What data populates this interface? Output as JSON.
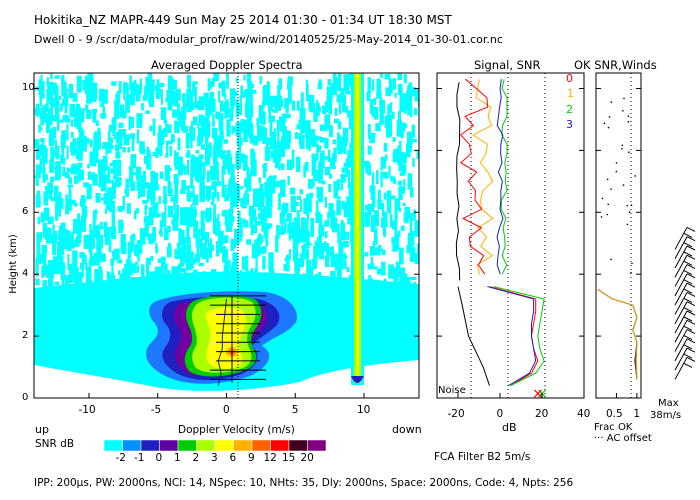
{
  "header": {
    "line1": "Hokitika_NZ  MAPR-449  Sun May 25 2014 01:30 - 01:34 UT 18:30 MST",
    "line2": "Dwell  0 - 9   /scr/data/modular_prof/raw/wind/20140525/25-May-2014_01-30-01.cor.nc"
  },
  "panel_titles": {
    "spectra": "Averaged Doppler Spectra",
    "signal": "Signal, SNR",
    "winds": "OK SNR,Winds"
  },
  "axes": {
    "ylabel": "Height (km)",
    "y_ticks": [
      "0",
      "2",
      "4",
      "6",
      "8",
      "10"
    ],
    "spectra_xlabel": "Doppler Velocity (m/s)",
    "spectra_x_ticks": [
      "-10",
      "-5",
      "0",
      "5",
      "10"
    ],
    "up_label": "up",
    "down_label": "down",
    "signal_xlabel": "dB",
    "signal_x_ticks": [
      "-20",
      "0",
      "20",
      "40"
    ],
    "noise_label": "Noise",
    "frac_x_ticks": [
      "0.5",
      "1"
    ],
    "frac_label": "Frac OK",
    "ac_offset_label": "··· AC offset",
    "max_label": "Max",
    "max_value": "38m/s"
  },
  "legend_beams": [
    {
      "label": "0",
      "color": "#ff0000"
    },
    {
      "label": "1",
      "color": "#ffb000"
    },
    {
      "label": "2",
      "color": "#00cc00"
    },
    {
      "label": "3",
      "color": "#2020c0"
    }
  ],
  "snr_colorbar": {
    "title": "SNR dB",
    "labels": [
      "-2",
      "-1",
      "0",
      "1",
      "2",
      "3",
      "6",
      "9",
      "12",
      "15",
      "20"
    ],
    "colors": [
      "#00ffff",
      "#0090ff",
      "#2020c0",
      "#6000a0",
      "#00cc00",
      "#aaff00",
      "#ffff00",
      "#ffb000",
      "#ff6000",
      "#ff0000",
      "#400020",
      "#800080"
    ]
  },
  "filter_label": "FCA Filter B2  5m/s",
  "footer": "IPP: 200μs,  PW: 2000ns,  NCI:  14,  NSpec: 10, NHts: 35,  Dly: 2000ns,  Space: 2000ns,  Code: 4,  Npts: 256",
  "chart_data": [
    {
      "type": "heatmap",
      "title": "Averaged Doppler Spectra",
      "xlabel": "Doppler Velocity (m/s)",
      "ylabel": "Height (km)",
      "xlim": [
        -14,
        14
      ],
      "ylim": [
        0,
        10.5
      ],
      "note": "Strong echo core centred near 0 m/s between 0.5 and 3.4 km; weak noise speckle above 4 km; clutter line near +9.5 m/s",
      "peak_velocity_profile": {
        "height_km": [
          0.4,
          0.8,
          1.2,
          1.6,
          2.0,
          2.4,
          2.8,
          3.2
        ],
        "velocity_ms": [
          -0.6,
          -0.4,
          -0.6,
          -0.3,
          -0.3,
          -0.2,
          -0.1,
          0.0
        ]
      }
    },
    {
      "type": "line",
      "title": "Signal, SNR",
      "xlabel": "dB",
      "xlim": [
        -30,
        40
      ],
      "ylim": [
        0,
        10.5
      ],
      "series": [
        {
          "name": "0",
          "height_km": [
            0.4,
            0.8,
            1.2,
            1.6,
            2.0,
            2.4,
            2.8,
            3.2,
            3.6
          ],
          "snr_db": [
            5,
            15,
            18,
            16,
            15,
            16,
            17,
            17,
            -5
          ]
        },
        {
          "name": "2",
          "height_km": [
            0.4,
            0.8,
            1.2,
            1.6,
            2.0,
            2.4,
            2.8,
            3.2,
            3.6
          ],
          "snr_db": [
            5,
            17,
            21,
            19,
            18,
            19,
            20,
            21,
            -3
          ]
        },
        {
          "name": "3",
          "height_km": [
            0.4,
            0.8,
            1.2,
            1.6,
            2.0,
            2.4,
            2.8,
            3.2,
            3.6
          ],
          "snr_db": [
            4,
            14,
            17,
            16,
            15,
            15,
            16,
            16,
            -6
          ]
        },
        {
          "name": "Noise",
          "height_km": [
            0.4,
            1.0,
            2.0,
            3.0,
            3.6
          ],
          "snr_db": [
            -5,
            -8,
            -15,
            -18,
            -20
          ]
        }
      ]
    },
    {
      "type": "line",
      "title": "OK SNR,Winds",
      "xlabel": "Frac OK",
      "xlim": [
        0,
        1.1
      ],
      "ylim": [
        0,
        10.5
      ],
      "note": "Fraction OK near 1 below 3.5 km; wind barbs from 0.5 to 4.8 km, max 38 m/s"
    }
  ]
}
